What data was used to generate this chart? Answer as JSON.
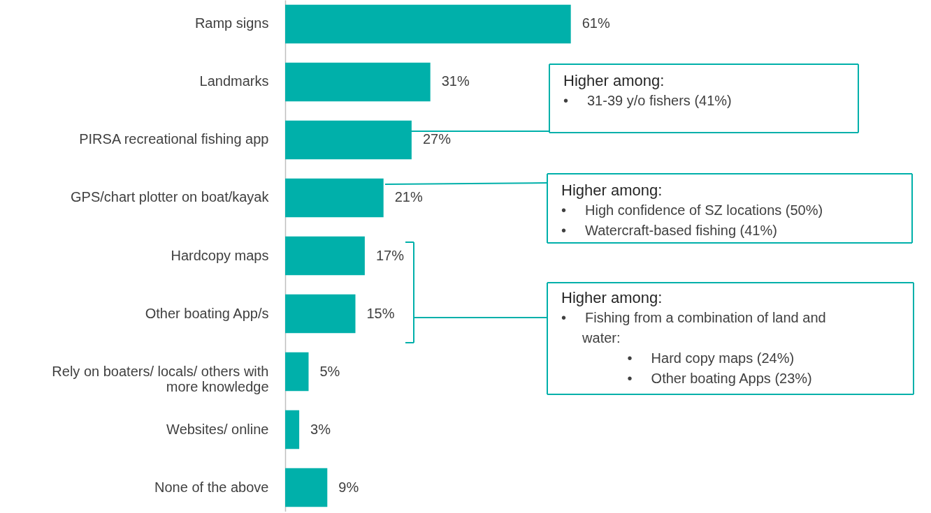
{
  "chart_data": {
    "type": "bar",
    "orientation": "horizontal",
    "color": "#00b0aa",
    "categories": [
      "Ramp signs",
      "Landmarks",
      "PIRSA recreational fishing app",
      "GPS/chart plotter on boat/kayak",
      "Hardcopy maps",
      "Other boating App/s",
      "Rely on boaters/ locals/ others with\nmore knowledge",
      "Websites/ online",
      "None of the above"
    ],
    "values": [
      61,
      31,
      27,
      21,
      17,
      15,
      5,
      3,
      9
    ],
    "value_labels": [
      "61%",
      "31%",
      "27%",
      "21%",
      "17%",
      "15%",
      "5%",
      "3%",
      "9%"
    ],
    "annotations": [
      "Higher among:\n•     31-39 y/o fishers (41%)",
      "Higher among:\n•     High confidence of SZ locations (50%)\n•     Watercraft-based fishing (41%)",
      "Higher among:\n•     Fishing from a combination of land and\n       water:\n                      •     Hard copy maps (24%)\n                      •     Other boating Apps (23%)"
    ]
  }
}
